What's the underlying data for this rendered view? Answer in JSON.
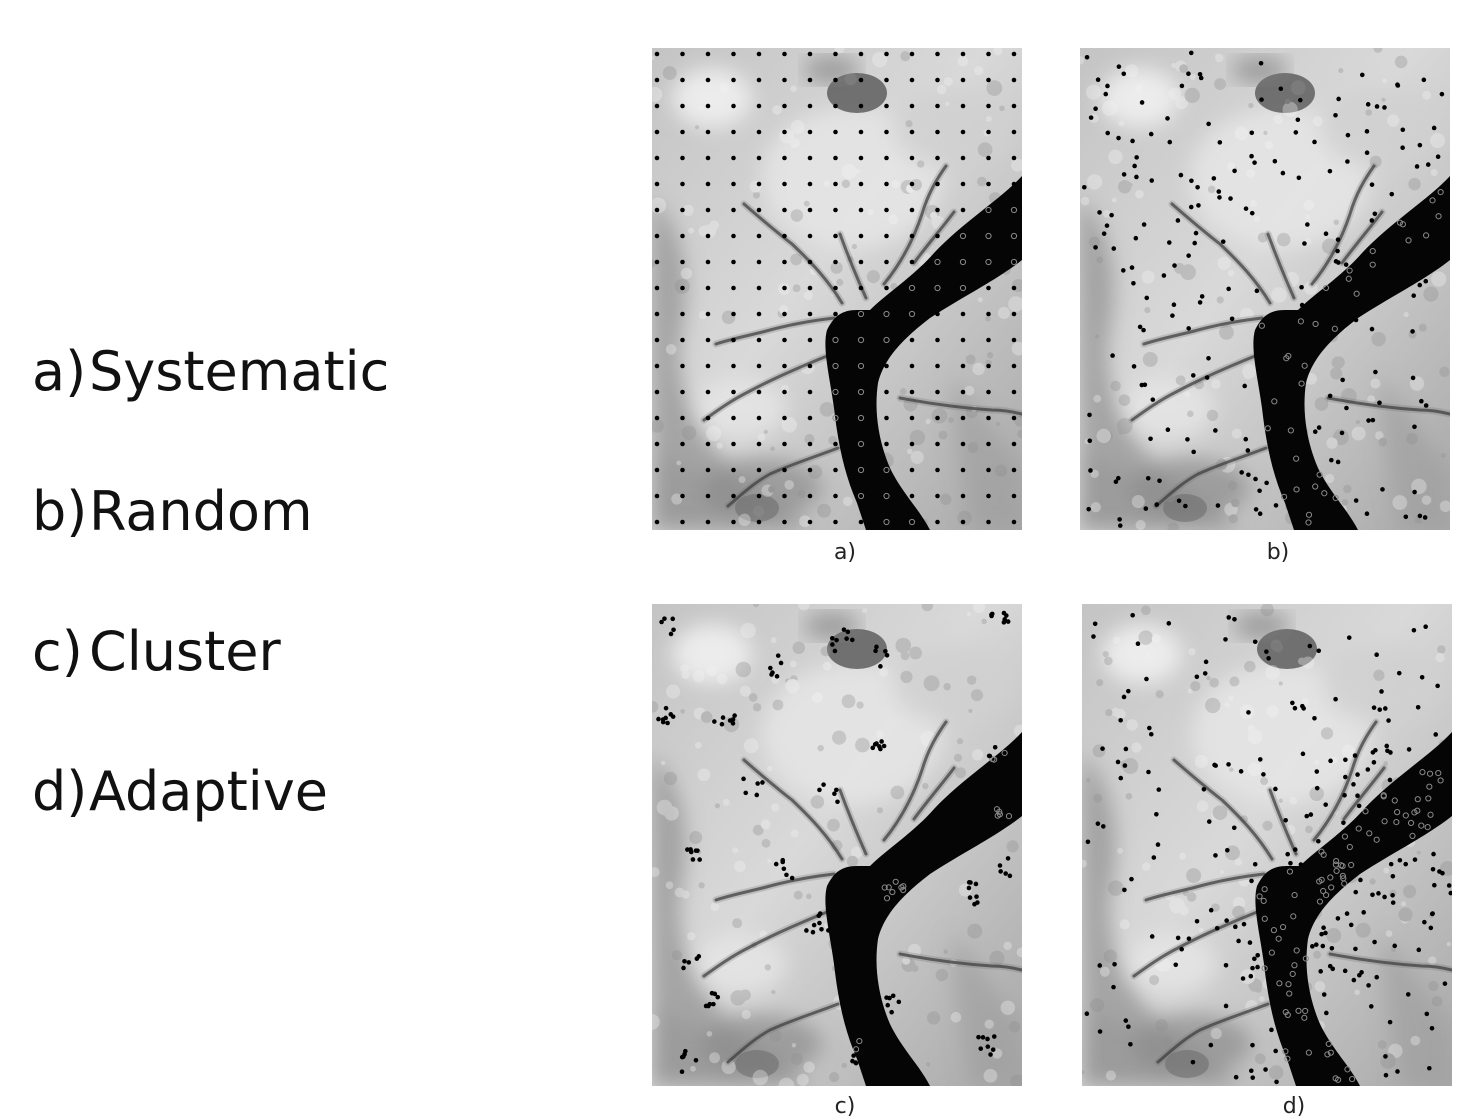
{
  "legend": [
    {
      "letter": "a",
      "label": "Systematic"
    },
    {
      "letter": "b",
      "label": "Random"
    },
    {
      "letter": "c",
      "label": "Cluster"
    },
    {
      "letter": "d",
      "label": "Adaptive"
    }
  ],
  "panels": [
    {
      "caption": "a)",
      "design": "systematic"
    },
    {
      "caption": "b)",
      "design": "random"
    },
    {
      "caption": "c)",
      "design": "cluster"
    },
    {
      "caption": "d)",
      "design": "adaptive"
    }
  ],
  "colors": {
    "terrain_light": "#d9d9d9",
    "terrain_mid": "#9a9a9a",
    "river": "#050505",
    "point_on_land": "#000000",
    "point_on_river": "#8a8a8a"
  }
}
